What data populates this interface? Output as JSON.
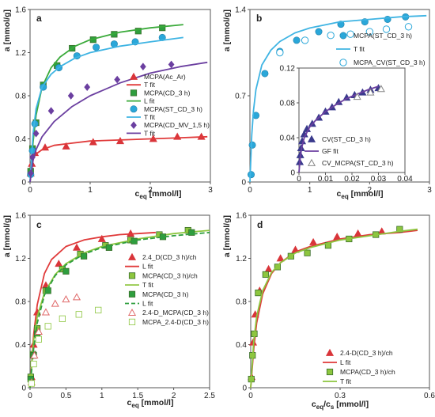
{
  "chart_data": [
    {
      "panel": "a",
      "type": "scatter",
      "title": "",
      "xlabel": "c_eq [mmol/l]",
      "ylabel": "a [mmol/g]",
      "xlim": [
        0,
        3
      ],
      "ylim": [
        0,
        1.6
      ],
      "xticks": [
        0,
        1,
        2,
        3
      ],
      "yticks": [
        0,
        0.4,
        0.8,
        1.2,
        1.6
      ],
      "legend_position": "right",
      "series": [
        {
          "name": "MCPA(Ac_Ar)",
          "kind": "points",
          "marker": "triangle",
          "color": "#d9353a",
          "x": [
            0.01,
            0.03,
            0.08,
            0.25,
            0.6,
            1.05,
            1.5,
            2.05,
            2.45,
            2.85
          ],
          "y": [
            0.08,
            0.17,
            0.27,
            0.32,
            0.33,
            0.37,
            0.38,
            0.4,
            0.42,
            0.42
          ]
        },
        {
          "name": "T fit",
          "kind": "line",
          "color": "#e03a3a",
          "x": [
            0,
            0.05,
            0.1,
            0.2,
            0.4,
            0.7,
            1.0,
            1.5,
            2.0,
            2.5,
            2.95
          ],
          "y": [
            0,
            0.22,
            0.26,
            0.3,
            0.34,
            0.36,
            0.38,
            0.39,
            0.4,
            0.41,
            0.42
          ]
        },
        {
          "name": "MCPA(CD_3 h)",
          "kind": "points",
          "marker": "square",
          "color": "#2e9e3e",
          "x": [
            0.01,
            0.04,
            0.1,
            0.22,
            0.45,
            0.7,
            1.05,
            1.4,
            1.8,
            2.2
          ],
          "y": [
            0.1,
            0.31,
            0.55,
            0.9,
            1.08,
            1.24,
            1.32,
            1.37,
            1.4,
            1.43
          ]
        },
        {
          "name": "L fit",
          "kind": "line",
          "color": "#3aaa3a",
          "x": [
            0,
            0.05,
            0.1,
            0.2,
            0.35,
            0.5,
            0.75,
            1.0,
            1.5,
            2.0,
            2.55
          ],
          "y": [
            0,
            0.37,
            0.62,
            0.88,
            1.06,
            1.16,
            1.26,
            1.32,
            1.39,
            1.43,
            1.46
          ]
        },
        {
          "name": "MCPA(ST_CD_3 h)",
          "kind": "points",
          "marker": "circle",
          "color": "#2aa7d9",
          "x": [
            0.01,
            0.04,
            0.08,
            0.22,
            0.48,
            0.78,
            1.1,
            1.4,
            1.75,
            2.2
          ],
          "y": [
            0.07,
            0.29,
            0.54,
            0.88,
            1.06,
            1.17,
            1.25,
            1.28,
            1.3,
            1.34
          ]
        },
        {
          "name": "T fit",
          "kind": "line",
          "color": "#3fb4e3",
          "x": [
            0,
            0.05,
            0.1,
            0.2,
            0.35,
            0.5,
            0.75,
            1.0,
            1.5,
            2.0,
            2.55
          ],
          "y": [
            0,
            0.45,
            0.68,
            0.88,
            1.0,
            1.07,
            1.15,
            1.2,
            1.26,
            1.3,
            1.34
          ]
        },
        {
          "name": "MCPA(CD_MV_1,5 h)",
          "kind": "points",
          "marker": "diamond",
          "color": "#6b3fa0",
          "x": [
            0.01,
            0.04,
            0.1,
            0.35,
            0.68,
            0.95,
            1.45,
            1.88,
            2.35
          ],
          "y": [
            0.08,
            0.23,
            0.45,
            0.66,
            0.8,
            0.88,
            0.95,
            1.07,
            1.09
          ]
        },
        {
          "name": "T fit",
          "kind": "line",
          "color": "#6b3fa0",
          "x": [
            0,
            0.05,
            0.1,
            0.2,
            0.4,
            0.7,
            1.0,
            1.5,
            2.0,
            2.5,
            2.95
          ],
          "y": [
            0,
            0.2,
            0.3,
            0.42,
            0.56,
            0.7,
            0.8,
            0.92,
            1.01,
            1.07,
            1.11
          ]
        }
      ]
    },
    {
      "panel": "b",
      "type": "scatter",
      "title": "",
      "xlabel": "",
      "ylabel": "a [mmol/g]",
      "xlim": [
        0,
        3
      ],
      "ylim": [
        0,
        1.4
      ],
      "xticks": [
        0,
        1,
        2,
        3
      ],
      "yticks": [
        0,
        0.7,
        1.4
      ],
      "legend_position": "right",
      "series": [
        {
          "name": "MCPA(ST_CD_3 h)",
          "kind": "points",
          "marker": "circle",
          "color": "#2aa7d9",
          "x": [
            0.02,
            0.04,
            0.1,
            0.25,
            0.5,
            0.78,
            1.15,
            1.52,
            1.92,
            2.3,
            2.6
          ],
          "y": [
            0.06,
            0.3,
            0.54,
            0.88,
            1.06,
            1.15,
            1.22,
            1.28,
            1.3,
            1.32,
            1.34
          ]
        },
        {
          "name": "T fit",
          "kind": "line",
          "color": "#3fb4e3",
          "x": [
            0,
            0.03,
            0.06,
            0.1,
            0.2,
            0.35,
            0.5,
            0.75,
            1.0,
            1.5,
            2.0,
            2.5,
            2.95
          ],
          "y": [
            0,
            0.38,
            0.58,
            0.75,
            0.95,
            1.07,
            1.14,
            1.21,
            1.25,
            1.3,
            1.32,
            1.34,
            1.35
          ]
        },
        {
          "name": "MCPA_CV(ST_CD_3 h)",
          "kind": "points",
          "marker": "circle-open",
          "color": "#2aa7d9",
          "x": [
            0.5,
            0.92,
            1.35,
            1.68,
            2.0,
            2.28,
            2.65
          ],
          "y": [
            1.05,
            1.15,
            1.19,
            1.2,
            1.22,
            1.24,
            1.26
          ]
        }
      ]
    },
    {
      "panel": "b-inset",
      "type": "scatter",
      "title": "",
      "xlabel": "",
      "ylabel": "",
      "xlim": [
        0,
        0.04
      ],
      "ylim": [
        0,
        0.12
      ],
      "xticks": [
        0,
        0.01,
        0.02,
        0.03,
        0.04
      ],
      "yticks": [
        0,
        0.04,
        0.08,
        0.12
      ],
      "legend_position": "bottom",
      "series": [
        {
          "name": "CV(ST_CD_3 h)",
          "kind": "points",
          "marker": "triangle",
          "color": "#3a3a8c",
          "x": [
            0.0003,
            0.0005,
            0.0008,
            0.0012,
            0.002,
            0.003,
            0.005,
            0.0075,
            0.01,
            0.0125,
            0.015,
            0.018,
            0.021,
            0.024,
            0.027,
            0.03
          ],
          "y": [
            0.012,
            0.02,
            0.028,
            0.036,
            0.044,
            0.05,
            0.056,
            0.063,
            0.07,
            0.075,
            0.081,
            0.086,
            0.089,
            0.092,
            0.095,
            0.097
          ]
        },
        {
          "name": "GF fit",
          "kind": "line",
          "color": "#6b3fa0",
          "x": [
            0,
            0.0005,
            0.001,
            0.002,
            0.004,
            0.006,
            0.01,
            0.014,
            0.018,
            0.022,
            0.026,
            0.03
          ],
          "y": [
            0,
            0.018,
            0.028,
            0.04,
            0.052,
            0.059,
            0.07,
            0.078,
            0.085,
            0.09,
            0.095,
            0.099
          ]
        },
        {
          "name": "CV_MCPA(ST_CD_3 h)",
          "kind": "points",
          "marker": "triangle-open",
          "color": "#888888",
          "x": [
            0.022,
            0.027,
            0.031
          ],
          "y": [
            0.087,
            0.092,
            0.096
          ]
        }
      ]
    },
    {
      "panel": "c",
      "type": "scatter",
      "title": "",
      "xlabel": "c_eq [mmol/l]",
      "ylabel": "a [mmol/g]",
      "xlim": [
        0,
        2.5
      ],
      "ylim": [
        0,
        1.6
      ],
      "xticks": [
        0,
        0.5,
        1,
        1.5,
        2,
        2.5
      ],
      "yticks": [
        0,
        0.4,
        0.8,
        1.2,
        1.6
      ],
      "legend_position": "right",
      "series": [
        {
          "name": "2.4_D(CD_3 h)/ch",
          "kind": "points",
          "marker": "triangle",
          "color": "#d9353a",
          "x": [
            0.02,
            0.05,
            0.1,
            0.22,
            0.4,
            0.65,
            1.0,
            1.4
          ],
          "y": [
            0.1,
            0.4,
            0.7,
            0.95,
            1.15,
            1.3,
            1.38,
            1.43
          ]
        },
        {
          "name": "L fit",
          "kind": "line",
          "color": "#e03a3a",
          "x": [
            0,
            0.05,
            0.1,
            0.2,
            0.3,
            0.5,
            0.75,
            1.0,
            1.25,
            1.5,
            1.75
          ],
          "y": [
            0,
            0.49,
            0.77,
            1.06,
            1.19,
            1.31,
            1.37,
            1.4,
            1.42,
            1.43,
            1.44
          ]
        },
        {
          "name": "MCPA(CD_3 h)/ch",
          "kind": "points",
          "marker": "square",
          "color": "#8dc63f",
          "x": [
            0.01,
            0.04,
            0.1,
            0.22,
            0.45,
            0.7,
            1.05,
            1.4,
            1.8,
            2.2
          ],
          "y": [
            0.1,
            0.31,
            0.55,
            0.9,
            1.1,
            1.24,
            1.32,
            1.37,
            1.42,
            1.46
          ]
        },
        {
          "name": "T fit",
          "kind": "line",
          "color": "#8dc63f",
          "x": [
            0,
            0.05,
            0.1,
            0.2,
            0.35,
            0.5,
            0.75,
            1.0,
            1.5,
            2.0,
            2.5
          ],
          "y": [
            0,
            0.44,
            0.66,
            0.88,
            1.05,
            1.15,
            1.25,
            1.31,
            1.38,
            1.43,
            1.46
          ]
        },
        {
          "name": "MCPA(CD_3 h)",
          "kind": "points",
          "marker": "square",
          "color": "#2e9e3e",
          "x": [
            0.01,
            0.05,
            0.1,
            0.25,
            0.5,
            0.75,
            1.1,
            1.45,
            1.85,
            2.25
          ],
          "y": [
            0.08,
            0.3,
            0.5,
            0.9,
            1.08,
            1.22,
            1.3,
            1.36,
            1.4,
            1.44
          ]
        },
        {
          "name": "L fit",
          "kind": "dashed-line",
          "color": "#2e9e3e",
          "x": [
            0,
            0.05,
            0.1,
            0.2,
            0.35,
            0.5,
            0.75,
            1.0,
            1.5,
            2.0,
            2.5
          ],
          "y": [
            0,
            0.36,
            0.6,
            0.86,
            1.04,
            1.14,
            1.24,
            1.3,
            1.37,
            1.41,
            1.44
          ]
        },
        {
          "name": "2.4-D_MCPA(CD_3 h)",
          "kind": "points",
          "marker": "triangle-open",
          "color": "#e06a6a",
          "x": [
            0.02,
            0.06,
            0.12,
            0.22,
            0.35,
            0.5,
            0.65
          ],
          "y": [
            0.05,
            0.3,
            0.52,
            0.7,
            0.78,
            0.82,
            0.84
          ]
        },
        {
          "name": "MCPA_2.4-D(CD_3 h)",
          "kind": "points",
          "marker": "square-open",
          "color": "#8dc63f",
          "x": [
            0.02,
            0.05,
            0.12,
            0.25,
            0.45,
            0.68,
            0.95
          ],
          "y": [
            0.04,
            0.22,
            0.45,
            0.57,
            0.64,
            0.68,
            0.72
          ]
        }
      ]
    },
    {
      "panel": "d",
      "type": "scatter",
      "title": "",
      "xlabel": "c_eq/c_s [mmol/l]",
      "ylabel": "a [mmol/g]",
      "xlim": [
        0,
        0.6
      ],
      "ylim": [
        0,
        1.6
      ],
      "xticks": [
        0,
        0.3,
        0.6
      ],
      "yticks": [
        0,
        0.4,
        0.8,
        1.2,
        1.6
      ],
      "legend_position": "bottom-right",
      "series": [
        {
          "name": "2.4-D(CD_3 h)/ch",
          "kind": "points",
          "marker": "triangle",
          "color": "#d9353a",
          "x": [
            0.003,
            0.008,
            0.015,
            0.03,
            0.06,
            0.1,
            0.15,
            0.21,
            0.29,
            0.36,
            0.44
          ],
          "y": [
            0.1,
            0.42,
            0.68,
            0.9,
            1.1,
            1.2,
            1.28,
            1.35,
            1.4,
            1.43,
            1.45
          ]
        },
        {
          "name": "L fit",
          "kind": "line",
          "color": "#e03a3a",
          "x": [
            0,
            0.01,
            0.02,
            0.04,
            0.07,
            0.1,
            0.15,
            0.2,
            0.3,
            0.4,
            0.5,
            0.56
          ],
          "y": [
            0,
            0.36,
            0.6,
            0.87,
            1.06,
            1.16,
            1.26,
            1.31,
            1.38,
            1.42,
            1.44,
            1.46
          ]
        },
        {
          "name": "MCPA(CD_3 h)/ch",
          "kind": "points",
          "marker": "square",
          "color": "#8dc63f",
          "x": [
            0.002,
            0.006,
            0.012,
            0.025,
            0.05,
            0.09,
            0.135,
            0.19,
            0.26,
            0.33,
            0.42,
            0.5
          ],
          "y": [
            0.08,
            0.3,
            0.5,
            0.88,
            1.05,
            1.12,
            1.22,
            1.25,
            1.32,
            1.38,
            1.42,
            1.47
          ]
        },
        {
          "name": "T fit",
          "kind": "line",
          "color": "#8dc63f",
          "x": [
            0,
            0.01,
            0.02,
            0.04,
            0.07,
            0.1,
            0.15,
            0.2,
            0.3,
            0.4,
            0.5,
            0.56
          ],
          "y": [
            0,
            0.43,
            0.66,
            0.9,
            1.07,
            1.16,
            1.25,
            1.3,
            1.37,
            1.41,
            1.45,
            1.47
          ]
        }
      ]
    }
  ]
}
